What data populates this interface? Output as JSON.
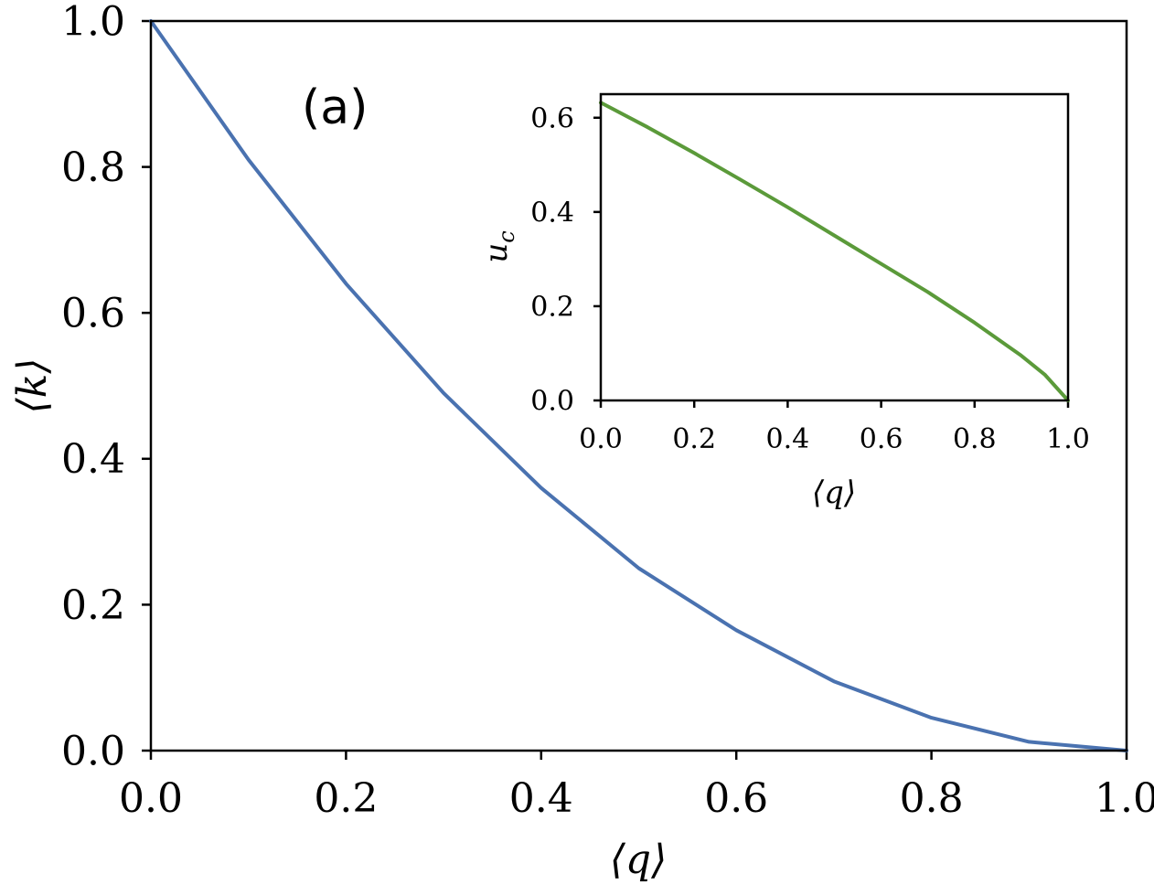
{
  "panel_label": "(a)",
  "colors": {
    "main_curve": "#4a72b0",
    "inset_curve": "#5b9a3a",
    "axes": "#000000"
  },
  "chart_data": [
    {
      "type": "line",
      "xlabel": "⟨q⟩",
      "ylabel": "⟨k⟩",
      "xlim": [
        0.0,
        1.0
      ],
      "ylim": [
        0.0,
        1.0
      ],
      "xticks": [
        "0.0",
        "0.2",
        "0.4",
        "0.6",
        "0.8",
        "1.0"
      ],
      "yticks": [
        "0.0",
        "0.2",
        "0.4",
        "0.6",
        "0.8",
        "1.0"
      ],
      "grid": false,
      "series": [
        {
          "x": [
            0.0,
            0.1,
            0.2,
            0.3,
            0.4,
            0.5,
            0.6,
            0.7,
            0.8,
            0.9,
            1.0
          ],
          "y": [
            1.0,
            0.81,
            0.64,
            0.49,
            0.36,
            0.25,
            0.165,
            0.095,
            0.045,
            0.012,
            0.0
          ]
        }
      ]
    },
    {
      "type": "line",
      "xlabel": "⟨q⟩",
      "ylabel": "u_c",
      "xlim": [
        0.0,
        1.0
      ],
      "ylim": [
        0.0,
        0.65
      ],
      "xticks": [
        "0.0",
        "0.2",
        "0.4",
        "0.6",
        "0.8",
        "1.0"
      ],
      "yticks": [
        "0.0",
        "0.2",
        "0.4",
        "0.6"
      ],
      "grid": false,
      "series": [
        {
          "x": [
            0.0,
            0.1,
            0.2,
            0.3,
            0.4,
            0.5,
            0.6,
            0.7,
            0.8,
            0.9,
            0.95,
            1.0
          ],
          "y": [
            0.632,
            0.58,
            0.525,
            0.468,
            0.41,
            0.35,
            0.29,
            0.23,
            0.165,
            0.095,
            0.055,
            0.0
          ]
        }
      ]
    }
  ]
}
